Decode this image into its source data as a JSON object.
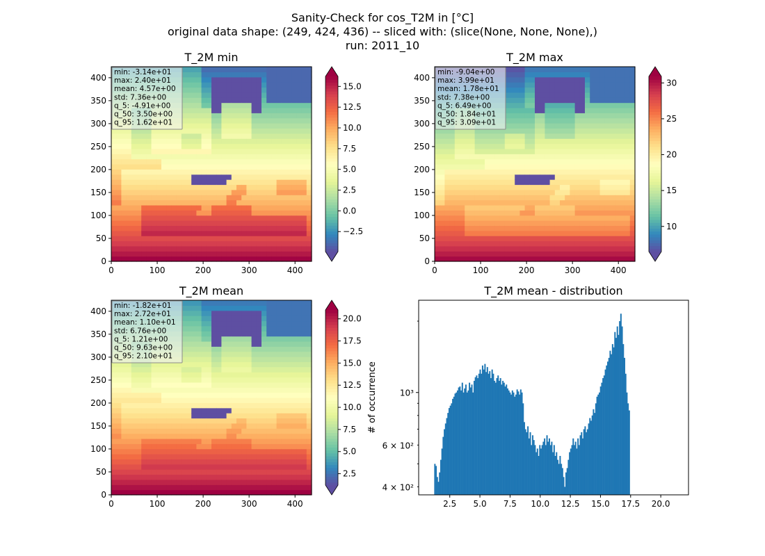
{
  "figure": {
    "title_lines": [
      "Sanity-Check for cos_T2M in [°C]",
      "original data shape: (249, 424, 436) -- sliced with: (slice(None, None, None),)",
      "run: 2011_10"
    ]
  },
  "colormap": {
    "name": "Spectral_r",
    "stops": [
      "#5e4fa2",
      "#3288bd",
      "#66c2a5",
      "#abdda4",
      "#e6f598",
      "#ffffbf",
      "#fee08b",
      "#fdae61",
      "#f46d43",
      "#d53e4f",
      "#9e0142"
    ]
  },
  "chart_data": [
    {
      "type": "heatmap",
      "title": "T_2M min",
      "xlabel": "",
      "ylabel": "",
      "xlim": [
        0,
        436
      ],
      "ylim": [
        0,
        424
      ],
      "x_ticks": [
        0,
        100,
        200,
        300,
        400
      ],
      "y_ticks": [
        0,
        50,
        100,
        150,
        200,
        250,
        300,
        350,
        400
      ],
      "colorbar": {
        "range": [
          -4.91,
          16.2
        ],
        "ticks": [
          -2.5,
          0.0,
          2.5,
          5.0,
          7.5,
          10.0,
          12.5,
          15.0
        ],
        "tick_labels": [
          "−2.5",
          "0.0",
          "2.5",
          "5.0",
          "7.5",
          "10.0",
          "12.5",
          "15.0"
        ],
        "extend": "both"
      },
      "stats_box": [
        "min: -3.14e+01",
        "max: 2.40e+01",
        "mean: 4.57e+00",
        "std: 7.36e+00",
        "q_5: -4.91e+00",
        "q_50: 3.50e+00",
        "q_95: 1.62e+01"
      ],
      "field_profile": {
        "south_value": 16.5,
        "north_value": -4.0,
        "sea_offset": 2.0,
        "alps_value": -6.0,
        "scandinavia_value": -6.5
      }
    },
    {
      "type": "heatmap",
      "title": "T_2M max",
      "xlabel": "",
      "ylabel": "",
      "xlim": [
        0,
        436
      ],
      "ylim": [
        0,
        424
      ],
      "x_ticks": [
        0,
        100,
        200,
        300,
        400
      ],
      "y_ticks": [
        0,
        50,
        100,
        150,
        200,
        250,
        300,
        350,
        400
      ],
      "colorbar": {
        "range": [
          6.49,
          30.9
        ],
        "ticks": [
          10,
          15,
          20,
          25,
          30
        ],
        "tick_labels": [
          "10",
          "15",
          "20",
          "25",
          "30"
        ],
        "extend": "both"
      },
      "stats_box": [
        "min: -9.04e+00",
        "max: 3.99e+01",
        "mean: 1.78e+01",
        "std: 7.38e+00",
        "q_5: 6.49e+00",
        "q_50: 1.84e+01",
        "q_95: 3.09e+01"
      ],
      "field_profile": {
        "south_value": 31.0,
        "north_value": 8.0,
        "sea_offset": -1.5,
        "alps_value": 6.0,
        "scandinavia_value": 6.0
      }
    },
    {
      "type": "heatmap",
      "title": "T_2M mean",
      "xlabel": "",
      "ylabel": "",
      "xlim": [
        0,
        436
      ],
      "ylim": [
        0,
        424
      ],
      "x_ticks": [
        0,
        100,
        200,
        300,
        400
      ],
      "y_ticks": [
        0,
        50,
        100,
        150,
        200,
        250,
        300,
        350,
        400
      ],
      "colorbar": {
        "range": [
          1.21,
          21.0
        ],
        "ticks": [
          2.5,
          5.0,
          7.5,
          10.0,
          12.5,
          15.0,
          17.5,
          20.0
        ],
        "tick_labels": [
          "2.5",
          "5.0",
          "7.5",
          "10.0",
          "12.5",
          "15.0",
          "17.5",
          "20.0"
        ],
        "extend": "both"
      },
      "stats_box": [
        "min: -1.82e+01",
        "max: 2.72e+01",
        "mean: 1.10e+01",
        "std: 6.76e+00",
        "q_5: 1.21e+00",
        "q_50: 9.63e+00",
        "q_95: 2.10e+01"
      ],
      "field_profile": {
        "south_value": 21.5,
        "north_value": 2.5,
        "sea_offset": 1.0,
        "alps_value": 0.5,
        "scandinavia_value": 0.5
      }
    },
    {
      "type": "bar",
      "title": "T_2M mean - distribution",
      "xlabel": "",
      "ylabel": "# of occurrence",
      "y_scale": "log",
      "xlim": [
        -0.08,
        22.3
      ],
      "ylim": [
        370,
        2450
      ],
      "x_ticks": [
        2.5,
        5.0,
        7.5,
        10.0,
        12.5,
        15.0,
        17.5,
        20.0
      ],
      "x_tick_labels": [
        "2.5",
        "5.0",
        "7.5",
        "10.0",
        "12.5",
        "15.0",
        "17.5",
        "20.0"
      ],
      "y_major_ticks": [
        1000
      ],
      "y_major_labels": [
        "10³"
      ],
      "y_minor_ticks": [
        400,
        600
      ],
      "y_minor_labels": [
        "4 × 10²",
        "6 × 10²"
      ],
      "bin_start": 1.21,
      "bin_width": 0.0989,
      "values": [
        500,
        490,
        440,
        420,
        460,
        520,
        580,
        650,
        700,
        740,
        780,
        820,
        860,
        880,
        900,
        940,
        960,
        990,
        1000,
        1020,
        1050,
        1060,
        1020,
        1100,
        1000,
        1040,
        1080,
        1000,
        1020,
        1100,
        1050,
        1080,
        1000,
        1120,
        1160,
        1180,
        1150,
        1200,
        1250,
        1200,
        1300,
        1250,
        1320,
        1220,
        1280,
        1200,
        1230,
        1150,
        1250,
        1200,
        1120,
        1100,
        1150,
        1180,
        1120,
        1150,
        1080,
        1120,
        1100,
        1060,
        1080,
        1040,
        1020,
        1000,
        980,
        1020,
        1000,
        960,
        980,
        1030,
        1010,
        980,
        1030,
        1000,
        900,
        750,
        700,
        680,
        720,
        640,
        680,
        600,
        660,
        630,
        600,
        560,
        580,
        540,
        600,
        580,
        600,
        620,
        640,
        600,
        660,
        620,
        640,
        600,
        620,
        560,
        600,
        540,
        560,
        520,
        500,
        540,
        500,
        480,
        440,
        400,
        460,
        480,
        520,
        560,
        580,
        600,
        640,
        600,
        620,
        580,
        640,
        600,
        660,
        680,
        640,
        700,
        720,
        680,
        700,
        740,
        780,
        760,
        800,
        850,
        820,
        900,
        960,
        980,
        1000,
        1060,
        1100,
        1150,
        1180,
        1250,
        1300,
        1350,
        1400,
        1500,
        1450,
        1600,
        1550,
        1800,
        1700,
        1900,
        1750,
        2000,
        2150,
        1900,
        1600,
        1400,
        1200,
        1000,
        900,
        840
      ]
    }
  ]
}
